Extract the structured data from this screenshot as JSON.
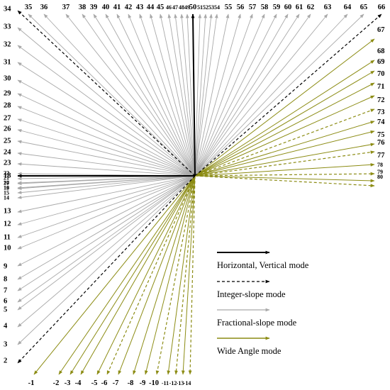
{
  "colors": {
    "hv": "#000000",
    "integer": "#000000",
    "fractional": "#a9a9a9",
    "wide_standard": "#8c8c14",
    "wide_integer": "#8c8c14"
  },
  "modes": {
    "hv": [
      18,
      50
    ],
    "integer": [
      2,
      34,
      66,
      -14,
      -12,
      -10,
      -6,
      72,
      76,
      78,
      80
    ],
    "wide": [
      -14,
      -13,
      -12,
      -11,
      -10,
      -9,
      -8,
      -7,
      -6,
      -5,
      -4,
      -3,
      -2,
      -1,
      67,
      68,
      69,
      70,
      71,
      72,
      73,
      74,
      75,
      76,
      77,
      78,
      79,
      80
    ]
  },
  "legend": [
    {
      "id": "hv",
      "style": "solid-black",
      "label": "Horizontal,  Vertical mode"
    },
    {
      "id": "integer",
      "style": "dashed-black",
      "label": "Integer-slope mode"
    },
    {
      "id": "fractional",
      "style": "solid-gray",
      "label": "Fractional-slope mode"
    },
    {
      "id": "wide",
      "style": "solid-olive",
      "label": "Wide Angle mode"
    }
  ],
  "top_labels": [
    "35",
    "36",
    "37",
    "38",
    "39",
    "40",
    "41",
    "42",
    "43",
    "44",
    "45",
    "46",
    "47",
    "48",
    "49",
    "50",
    "51",
    "52",
    "53",
    "54",
    "55",
    "56",
    "57",
    "58",
    "59",
    "60",
    "61",
    "62",
    "63",
    "64",
    "65",
    "66"
  ],
  "left_labels": [
    "34",
    "33",
    "32",
    "31",
    "30",
    "29",
    "28",
    "27",
    "26",
    "25",
    "24",
    "23",
    "22",
    "21",
    "20",
    "19",
    "18",
    "17",
    "16",
    "15",
    "14",
    "13",
    "12",
    "11",
    "10",
    "9",
    "8",
    "7",
    "6",
    "5",
    "4",
    "3",
    "2"
  ],
  "bottom_labels": [
    "-1",
    "-2",
    "-3",
    "-4",
    "-5",
    "-6",
    "-7",
    "-8",
    "-9",
    "-10",
    "-11",
    "-12",
    "-13",
    "-14"
  ],
  "right_labels": [
    "67",
    "68",
    "69",
    "70",
    "71",
    "72",
    "73",
    "74",
    "75",
    "76",
    "77",
    "78",
    "79",
    "80"
  ]
}
